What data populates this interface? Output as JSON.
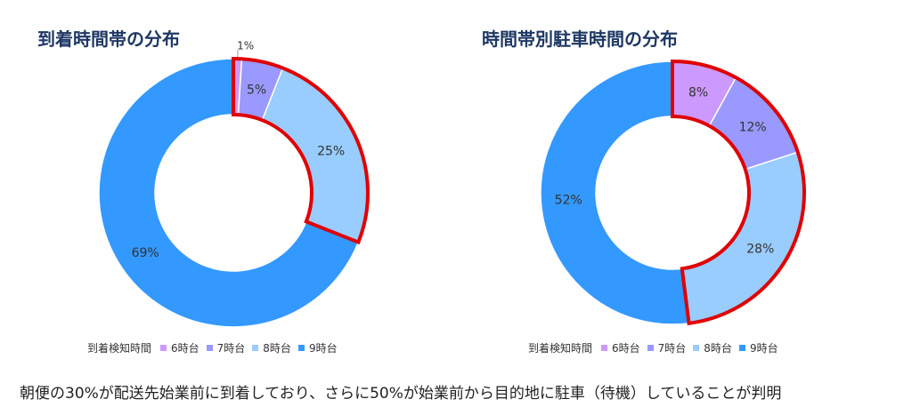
{
  "colors": {
    "6時台": "#cc99ff",
    "7時台": "#9999ff",
    "8時台": "#99ccff",
    "9時台": "#3399ff",
    "highlight": "#e00000"
  },
  "chart_data": [
    {
      "type": "pie",
      "title": "到着時間帯の分布",
      "legend_title": "到着検知時間",
      "legend_position": "bottom",
      "categories": [
        "6時台",
        "7時台",
        "8時台",
        "9時台"
      ],
      "values": [
        1,
        5,
        25,
        69
      ],
      "labels": [
        "1%",
        "5%",
        "25%",
        "69%"
      ],
      "highlighted": [
        "6時台",
        "7時台",
        "8時台"
      ]
    },
    {
      "type": "pie",
      "title": "時間帯別駐車時間の分布",
      "legend_title": "到着検知時間",
      "legend_position": "bottom",
      "categories": [
        "6時台",
        "7時台",
        "8時台",
        "9時台"
      ],
      "values": [
        8,
        12,
        28,
        52
      ],
      "labels": [
        "8%",
        "12%",
        "28%",
        "52%"
      ],
      "highlighted": [
        "6時台",
        "7時台",
        "8時台"
      ]
    }
  ],
  "footer_text": "朝便の30%が配送先始業前に到着しており、さらに50%が始業前から目的地に駐車（待機）していることが判明"
}
